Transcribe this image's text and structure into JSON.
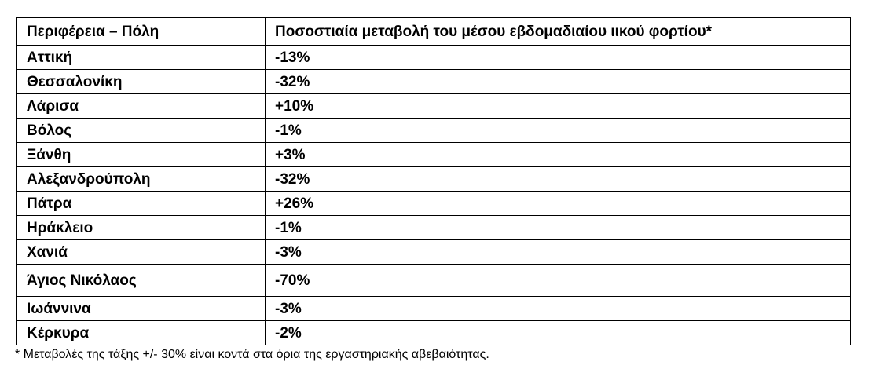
{
  "table": {
    "headers": {
      "region": "Περιφέρεια – Πόλη",
      "change": "Ποσοστιαία μεταβολή του μέσου εβδομαδιαίου ιικού φορτίου*"
    },
    "rows": [
      {
        "region": "Αττική",
        "change": "-13%"
      },
      {
        "region": "Θεσσαλονίκη",
        "change": "-32%"
      },
      {
        "region": "Λάρισα",
        "change": "+10%"
      },
      {
        "region": "Βόλος",
        "change": "-1%"
      },
      {
        "region": "Ξάνθη",
        "change": "+3%"
      },
      {
        "region": "Αλεξανδρούπολη",
        "change": "-32%"
      },
      {
        "region": "Πάτρα",
        "change": "+26%"
      },
      {
        "region": "Ηράκλειο",
        "change": "-1%"
      },
      {
        "region": "Χανιά",
        "change": "-3%"
      },
      {
        "region": "Άγιος Νικόλαος",
        "change": "-70%"
      },
      {
        "region": "Ιωάννινα",
        "change": "-3%"
      },
      {
        "region": "Κέρκυρα",
        "change": "-2%"
      }
    ]
  },
  "footnote": "* Μεταβολές της τάξης +/- 30% είναι κοντά στα όρια της εργαστηριακής αβεβαιότητας."
}
